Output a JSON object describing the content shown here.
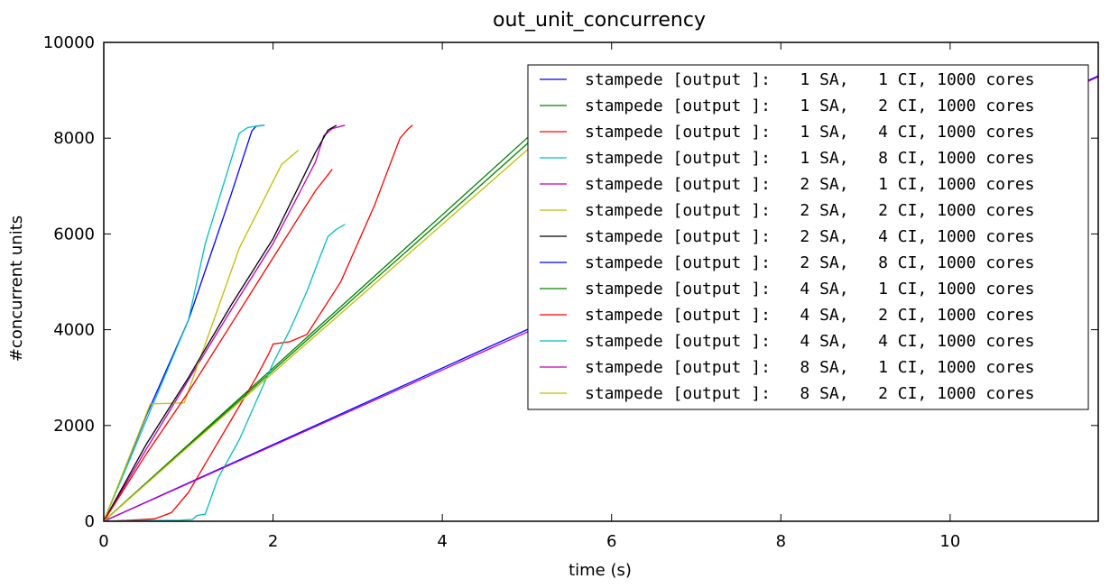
{
  "chart_data": {
    "type": "line",
    "title": "out_unit_concurrency",
    "xlabel": "time (s)",
    "ylabel": "#concurrent units",
    "xlim": [
      0,
      11.75
    ],
    "ylim": [
      0,
      10000
    ],
    "xticks": [
      "0",
      "2",
      "4",
      "6",
      "8",
      "10"
    ],
    "yticks": [
      "0",
      "2000",
      "4000",
      "6000",
      "8000",
      "10000"
    ],
    "grid": false,
    "legend_position": "top-right",
    "series": [
      {
        "name": "stampede [output ]:   1 SA,   1 CI, 1000 cores",
        "color": "#0000ff",
        "points": [
          [
            0,
            0
          ],
          [
            0.5,
            2200
          ],
          [
            1.0,
            4200
          ],
          [
            1.5,
            6800
          ],
          [
            1.75,
            8150
          ],
          [
            1.8,
            8250
          ],
          [
            1.9,
            8270
          ]
        ]
      },
      {
        "name": "stampede [output ]:   1 SA,   2 CI, 1000 cores",
        "color": "#008000",
        "points": [
          [
            0,
            0
          ],
          [
            1,
            1600
          ],
          [
            2,
            3200
          ],
          [
            3,
            4800
          ],
          [
            4,
            6400
          ],
          [
            5,
            8000
          ],
          [
            5.2,
            8270
          ]
        ]
      },
      {
        "name": "stampede [output ]:   1 SA,   4 CI, 1000 cores",
        "color": "#ff0000",
        "points": [
          [
            0,
            0
          ],
          [
            0.3,
            20
          ],
          [
            0.6,
            50
          ],
          [
            0.8,
            180
          ],
          [
            1.0,
            600
          ],
          [
            1.2,
            1200
          ],
          [
            1.5,
            2100
          ],
          [
            1.8,
            3000
          ],
          [
            1.95,
            3500
          ],
          [
            2.0,
            3700
          ],
          [
            2.2,
            3750
          ],
          [
            2.4,
            3900
          ],
          [
            2.8,
            5000
          ],
          [
            3.2,
            6600
          ],
          [
            3.5,
            8000
          ],
          [
            3.6,
            8200
          ],
          [
            3.65,
            8270
          ]
        ]
      },
      {
        "name": "stampede [output ]:   1 SA,   8 CI, 1000 cores",
        "color": "#00bfbf",
        "points": [
          [
            0,
            0
          ],
          [
            1,
            4200
          ],
          [
            1.2,
            5800
          ],
          [
            1.6,
            8100
          ],
          [
            1.7,
            8220
          ],
          [
            1.8,
            8250
          ],
          [
            1.9,
            8270
          ]
        ]
      },
      {
        "name": "stampede [output ]:   2 SA,   1 CI, 1000 cores",
        "color": "#bf00bf",
        "points": [
          [
            0,
            0
          ],
          [
            0.5,
            1500
          ],
          [
            1,
            2950
          ],
          [
            1.5,
            4400
          ],
          [
            2,
            5800
          ],
          [
            2.5,
            7500
          ],
          [
            2.6,
            8050
          ],
          [
            2.7,
            8200
          ],
          [
            2.85,
            8270
          ]
        ]
      },
      {
        "name": "stampede [output ]:   2 SA,   2 CI, 1000 cores",
        "color": "#bfbf00",
        "points": [
          [
            0,
            0
          ],
          [
            0.55,
            2450
          ],
          [
            0.95,
            2470
          ],
          [
            1.3,
            4200
          ],
          [
            1.6,
            5700
          ],
          [
            2.1,
            7450
          ],
          [
            2.3,
            7750
          ]
        ]
      },
      {
        "name": "stampede [output ]:   2 SA,   4 CI, 1000 cores",
        "color": "#000000",
        "points": [
          [
            0,
            0
          ],
          [
            0.5,
            1600
          ],
          [
            1,
            3000
          ],
          [
            1.5,
            4500
          ],
          [
            2,
            5900
          ],
          [
            2.5,
            7700
          ],
          [
            2.65,
            8170
          ],
          [
            2.75,
            8270
          ]
        ]
      },
      {
        "name": "stampede [output ]:   2 SA,   8 CI, 1000 cores",
        "color": "#0000ff",
        "points": [
          [
            0,
            0
          ],
          [
            5,
            4000
          ],
          [
            11.75,
            9300
          ]
        ]
      },
      {
        "name": "stampede [output ]:   4 SA,   1 CI, 1000 cores",
        "color": "#008000",
        "points": [
          [
            0,
            0
          ],
          [
            1,
            1580
          ],
          [
            2,
            3150
          ],
          [
            3,
            4730
          ],
          [
            4,
            6300
          ],
          [
            5,
            7880
          ],
          [
            5.2,
            8150
          ]
        ]
      },
      {
        "name": "stampede [output ]:   4 SA,   2 CI, 1000 cores",
        "color": "#ff0000",
        "points": [
          [
            0,
            0
          ],
          [
            0.5,
            1400
          ],
          [
            1,
            2700
          ],
          [
            1.5,
            4100
          ],
          [
            2,
            5500
          ],
          [
            2.5,
            6900
          ],
          [
            2.7,
            7350
          ]
        ]
      },
      {
        "name": "stampede [output ]:   4 SA,   4 CI, 1000 cores",
        "color": "#00bfbf",
        "points": [
          [
            0,
            0
          ],
          [
            0.3,
            10
          ],
          [
            0.6,
            15
          ],
          [
            0.9,
            20
          ],
          [
            1.05,
            40
          ],
          [
            1.1,
            120
          ],
          [
            1.2,
            150
          ],
          [
            1.35,
            900
          ],
          [
            1.6,
            1700
          ],
          [
            1.8,
            2500
          ],
          [
            2.0,
            3300
          ],
          [
            2.2,
            4000
          ],
          [
            2.4,
            4800
          ],
          [
            2.55,
            5500
          ],
          [
            2.65,
            5950
          ],
          [
            2.75,
            6100
          ],
          [
            2.85,
            6200
          ]
        ]
      },
      {
        "name": "stampede [output ]:   8 SA,   1 CI, 1000 cores",
        "color": "#bf00bf",
        "points": [
          [
            0,
            0
          ],
          [
            5,
            3950
          ],
          [
            11.75,
            9280
          ]
        ]
      },
      {
        "name": "stampede [output ]:   8 SA,   2 CI, 1000 cores",
        "color": "#bfbf00",
        "points": [
          [
            0,
            0
          ],
          [
            1,
            1560
          ],
          [
            2,
            3100
          ],
          [
            3,
            4650
          ],
          [
            4,
            6200
          ],
          [
            5,
            7750
          ],
          [
            5.1,
            7900
          ]
        ]
      }
    ]
  }
}
